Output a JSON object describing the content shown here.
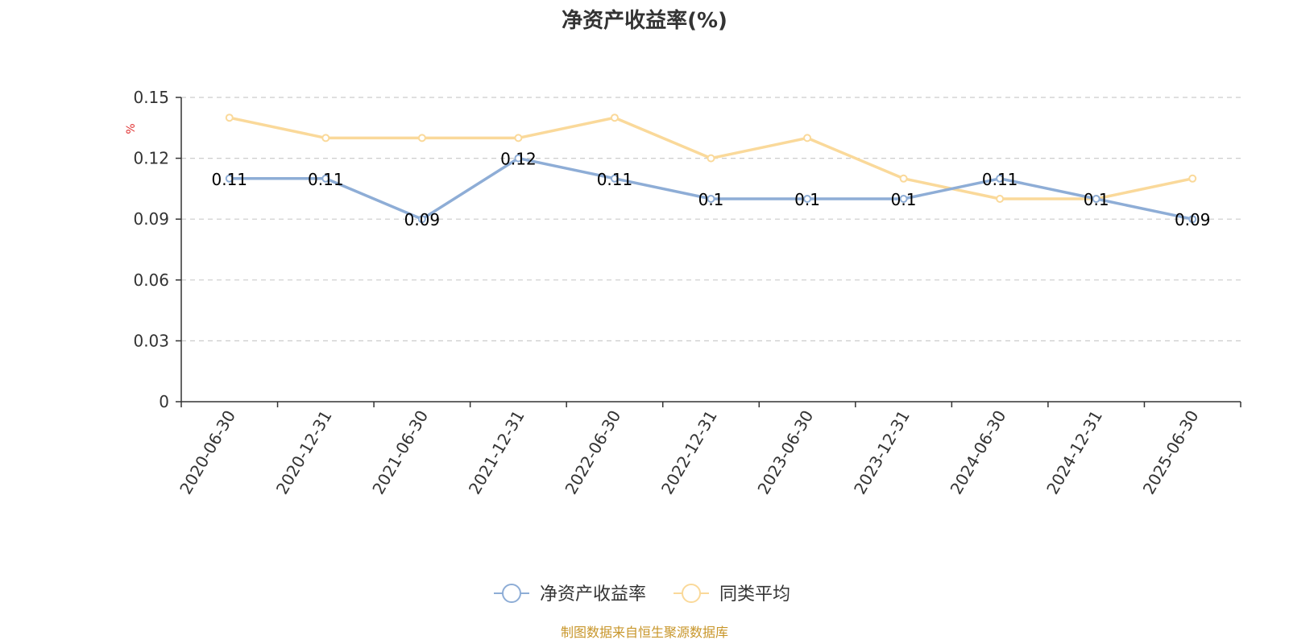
{
  "chart_data": {
    "type": "line",
    "title": "净资产收益率(%)",
    "ylabel": "%",
    "categories": [
      "2020-06-30",
      "2020-12-31",
      "2021-06-30",
      "2021-12-31",
      "2022-06-30",
      "2022-12-31",
      "2023-06-30",
      "2023-12-31",
      "2024-06-30",
      "2024-12-31",
      "2025-06-30"
    ],
    "ylim": [
      0,
      0.15
    ],
    "yticks": [
      "0",
      "0.03",
      "0.06",
      "0.09",
      "0.12",
      "0.15"
    ],
    "grid": true,
    "legend_position": "bottom-center",
    "series": [
      {
        "name": "净资产收益率",
        "color": "#8eadd6",
        "values": [
          0.11,
          0.11,
          0.09,
          0.12,
          0.11,
          0.1,
          0.1,
          0.1,
          0.11,
          0.1,
          0.09
        ],
        "labels": [
          "0.11",
          "0.11",
          "0.09",
          "0.12",
          "0.11",
          "0.1",
          "0.1",
          "0.1",
          "0.11",
          "0.1",
          "0.09"
        ]
      },
      {
        "name": "同类平均",
        "color": "#fad99a",
        "values": [
          0.14,
          0.13,
          0.13,
          0.13,
          0.14,
          0.12,
          0.13,
          0.11,
          0.1,
          0.1,
          0.11
        ]
      }
    ]
  },
  "source_note": "制图数据来自恒生聚源数据库",
  "colors": {
    "unit": "#e03030",
    "source": "#c8962a",
    "axis": "#333333",
    "grid": "#cccccc"
  }
}
